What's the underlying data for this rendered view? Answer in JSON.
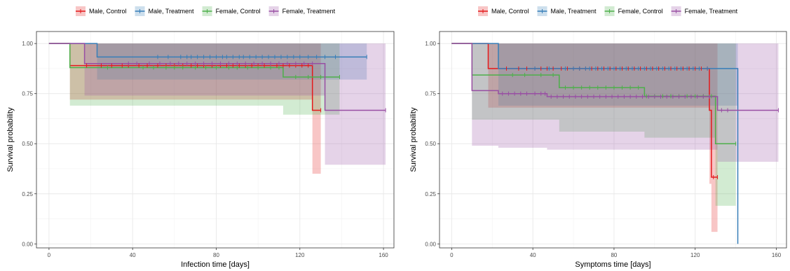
{
  "chart_data": [
    {
      "type": "line",
      "subtype": "kaplan-meier-step",
      "xlabel": "Infection time [days]",
      "ylabel": "Survival probability",
      "xlim": [
        -6,
        165
      ],
      "ylim": [
        -0.02,
        1.06
      ],
      "xticks": [
        0,
        40,
        80,
        120,
        160
      ],
      "yticks": [
        0.0,
        0.25,
        0.5,
        0.75,
        1.0
      ],
      "ytick_labels": [
        "0.00",
        "0.25",
        "0.50",
        "0.75",
        "1.00"
      ],
      "legend_position": "top",
      "grid": true,
      "series": [
        {
          "name": "Male, Control",
          "color": "#E41A1C",
          "steps": [
            [
              0,
              1.0
            ],
            [
              10,
              0.89
            ],
            [
              126,
              0.667
            ],
            [
              130,
              0.667
            ]
          ],
          "ci": [
            [
              0,
              1.0,
              1.0
            ],
            [
              10,
              0.72,
              1.0
            ],
            [
              126,
              0.35,
              1.0
            ],
            [
              130,
              0.35,
              1.0
            ]
          ],
          "censor_x": [
            18,
            25,
            30,
            35,
            38,
            43,
            47,
            52,
            56,
            60,
            64,
            68,
            71,
            74,
            78,
            82,
            85,
            88,
            91,
            94,
            97,
            100,
            103,
            106,
            109,
            112,
            115,
            118,
            121,
            124,
            130
          ]
        },
        {
          "name": "Male, Treatment",
          "color": "#377EB8",
          "steps": [
            [
              0,
              1.0
            ],
            [
              23,
              0.933
            ],
            [
              152,
              0.933
            ]
          ],
          "ci": [
            [
              0,
              1.0,
              1.0
            ],
            [
              23,
              0.82,
              1.0
            ],
            [
              152,
              0.82,
              1.0
            ]
          ],
          "censor_x": [
            52,
            57,
            63,
            66,
            68,
            71,
            74,
            77,
            80,
            83,
            85,
            88,
            91,
            93,
            96,
            99,
            102,
            105,
            108,
            111,
            114,
            117,
            120,
            124,
            128,
            132,
            137,
            152
          ]
        },
        {
          "name": "Female, Control",
          "color": "#4DAF4A",
          "steps": [
            [
              0,
              1.0
            ],
            [
              10,
              0.88
            ],
            [
              112,
              0.833
            ],
            [
              139,
              0.833
            ]
          ],
          "ci": [
            [
              0,
              1.0,
              1.0
            ],
            [
              10,
              0.69,
              1.0
            ],
            [
              112,
              0.645,
              1.0
            ],
            [
              139,
              0.645,
              1.0
            ]
          ],
          "censor_x": [
            28,
            45,
            50,
            56,
            60,
            64,
            70,
            75,
            80,
            86,
            90,
            95,
            100,
            106,
            110,
            118,
            124,
            130,
            139
          ]
        },
        {
          "name": "Female, Treatment",
          "color": "#984EA3",
          "steps": [
            [
              0,
              1.0
            ],
            [
              17,
              0.9
            ],
            [
              132,
              0.667
            ],
            [
              161,
              0.667
            ]
          ],
          "ci": [
            [
              0,
              1.0,
              1.0
            ],
            [
              17,
              0.74,
              1.0
            ],
            [
              132,
              0.395,
              1.0
            ],
            [
              161,
              0.395,
              1.0
            ]
          ],
          "censor_x": [
            38,
            42,
            48,
            53,
            58,
            62,
            66,
            70,
            74,
            78,
            82,
            86,
            90,
            94,
            98,
            102,
            106,
            110,
            114,
            118,
            122,
            126,
            161
          ]
        }
      ]
    },
    {
      "type": "line",
      "subtype": "kaplan-meier-step",
      "xlabel": "Symptoms time [days]",
      "ylabel": "Survival probability",
      "xlim": [
        -6,
        165
      ],
      "ylim": [
        -0.02,
        1.06
      ],
      "xticks": [
        0,
        40,
        80,
        120,
        160
      ],
      "yticks": [
        0.0,
        0.25,
        0.5,
        0.75,
        1.0
      ],
      "ytick_labels": [
        "0.00",
        "0.25",
        "0.50",
        "0.75",
        "1.00"
      ],
      "legend_position": "top",
      "grid": true,
      "series": [
        {
          "name": "Male, Control",
          "color": "#E41A1C",
          "steps": [
            [
              0,
              1.0
            ],
            [
              18,
              0.875
            ],
            [
              127,
              0.667
            ],
            [
              128,
              0.333
            ],
            [
              131,
              0.333
            ]
          ],
          "ci": [
            [
              0,
              1.0,
              1.0
            ],
            [
              18,
              0.68,
              1.0
            ],
            [
              127,
              0.3,
              1.0
            ],
            [
              128,
              0.06,
              1.0
            ],
            [
              131,
              0.06,
              1.0
            ]
          ],
          "censor_x": [
            27,
            33,
            37,
            41,
            44,
            47,
            50,
            54,
            57,
            60,
            63,
            66,
            69,
            72,
            75,
            78,
            81,
            84,
            87,
            90,
            93,
            96,
            99,
            102,
            105,
            108,
            111,
            114,
            117,
            120,
            123,
            126,
            129,
            131
          ]
        },
        {
          "name": "Male, Treatment",
          "color": "#377EB8",
          "steps": [
            [
              0,
              1.0
            ],
            [
              23,
              0.875
            ],
            [
              141,
              0.875
            ],
            [
              141,
              0.0
            ]
          ],
          "ci": [
            [
              0,
              1.0,
              1.0
            ],
            [
              23,
              0.69,
              1.0
            ],
            [
              141,
              0.0,
              1.0
            ]
          ],
          "censor_x": [
            41,
            48,
            56,
            60,
            63,
            66,
            68,
            71,
            74,
            77,
            80,
            83,
            86,
            89,
            92,
            95,
            98,
            101,
            104,
            107,
            110,
            113,
            116,
            119,
            122,
            126
          ]
        },
        {
          "name": "Female, Control",
          "color": "#4DAF4A",
          "steps": [
            [
              0,
              1.0
            ],
            [
              10,
              0.843
            ],
            [
              53,
              0.78
            ],
            [
              95,
              0.737
            ],
            [
              130,
              0.5
            ],
            [
              140,
              0.5
            ]
          ],
          "ci": [
            [
              0,
              1.0,
              1.0
            ],
            [
              10,
              0.62,
              1.0
            ],
            [
              53,
              0.56,
              1.0
            ],
            [
              95,
              0.53,
              1.0
            ],
            [
              130,
              0.19,
              1.0
            ],
            [
              140,
              0.19,
              1.0
            ]
          ],
          "censor_x": [
            30,
            36,
            44,
            50,
            56,
            60,
            64,
            68,
            72,
            76,
            80,
            84,
            88,
            92,
            96,
            100,
            104,
            108,
            112,
            116,
            120,
            124,
            128,
            140
          ]
        },
        {
          "name": "Female, Treatment",
          "color": "#984EA3",
          "steps": [
            [
              0,
              1.0
            ],
            [
              10,
              0.765
            ],
            [
              23,
              0.75
            ],
            [
              47,
              0.735
            ],
            [
              131,
              0.667
            ],
            [
              161,
              0.667
            ]
          ],
          "ci": [
            [
              0,
              1.0,
              1.0
            ],
            [
              10,
              0.49,
              1.0
            ],
            [
              23,
              0.48,
              1.0
            ],
            [
              47,
              0.47,
              1.0
            ],
            [
              131,
              0.41,
              1.0
            ],
            [
              161,
              0.41,
              1.0
            ]
          ],
          "censor_x": [
            25,
            28,
            31,
            34,
            37,
            41,
            44,
            46,
            49,
            52,
            55,
            58,
            61,
            64,
            67,
            70,
            73,
            76,
            79,
            82,
            85,
            88,
            91,
            94,
            97,
            100,
            103,
            106,
            109,
            112,
            115,
            118,
            121,
            124,
            127,
            133,
            136,
            161
          ]
        }
      ]
    }
  ]
}
